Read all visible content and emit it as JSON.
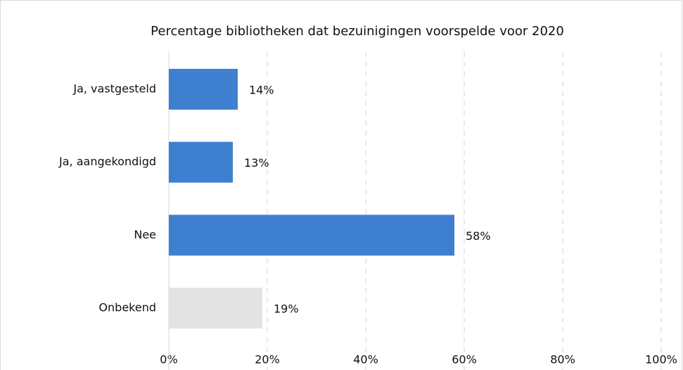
{
  "chart_data": {
    "type": "bar",
    "orientation": "horizontal",
    "title": "Percentage bibliotheken dat bezuinigingen voorspelde voor 2020",
    "categories": [
      "Ja, vastgesteld",
      "Ja, aangekondigd",
      "Nee",
      "Onbekend"
    ],
    "values": [
      14,
      13,
      58,
      19
    ],
    "value_labels": [
      "14%",
      "13%",
      "58%",
      "19%"
    ],
    "colors": [
      "#3f7fcf",
      "#3f7fcf",
      "#3f7fcf",
      "#e2e3e2"
    ],
    "xlim": [
      0,
      100
    ],
    "xticks": [
      {
        "value": 0,
        "label": "0%"
      },
      {
        "value": 20,
        "label": "20%"
      },
      {
        "value": 40,
        "label": "40%"
      },
      {
        "value": 60,
        "label": "60%"
      },
      {
        "value": 80,
        "label": "80%"
      },
      {
        "value": 100,
        "label": "100%"
      }
    ],
    "grid": true
  }
}
